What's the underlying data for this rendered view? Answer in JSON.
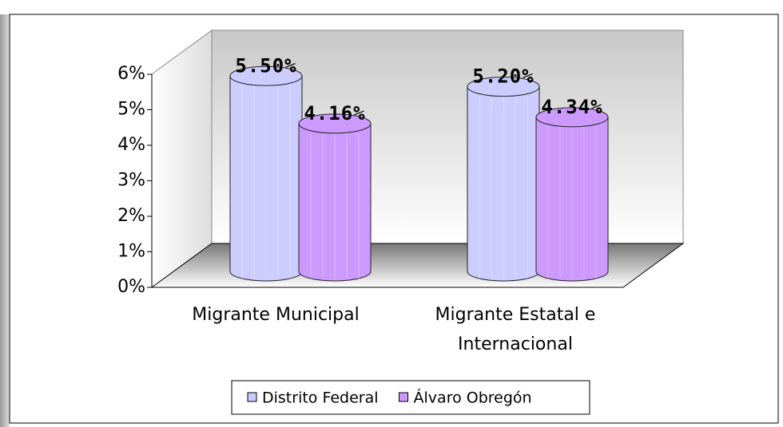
{
  "chart_data": {
    "type": "bar3d",
    "categories": [
      "Migrante Municipal",
      "Migrante Estatal e Internacional"
    ],
    "series": [
      {
        "name": "Distrito Federal",
        "color": "#ccccff",
        "values": [
          5.5,
          5.2
        ],
        "value_labels": [
          "5.50%",
          "5.20%"
        ]
      },
      {
        "name": "Álvaro Obregón",
        "color": "#cc99ff",
        "values": [
          4.16,
          4.34
        ],
        "value_labels": [
          "4.16%",
          "4.34%"
        ]
      }
    ],
    "ylim": [
      0,
      6
    ],
    "yticks": [
      {
        "value": 0,
        "label": "0%"
      },
      {
        "value": 1,
        "label": "1%"
      },
      {
        "value": 2,
        "label": "2%"
      },
      {
        "value": 3,
        "label": "3%"
      },
      {
        "value": 4,
        "label": "4%"
      },
      {
        "value": 5,
        "label": "5%"
      },
      {
        "value": 6,
        "label": "6%"
      }
    ],
    "legend": "bottom"
  }
}
